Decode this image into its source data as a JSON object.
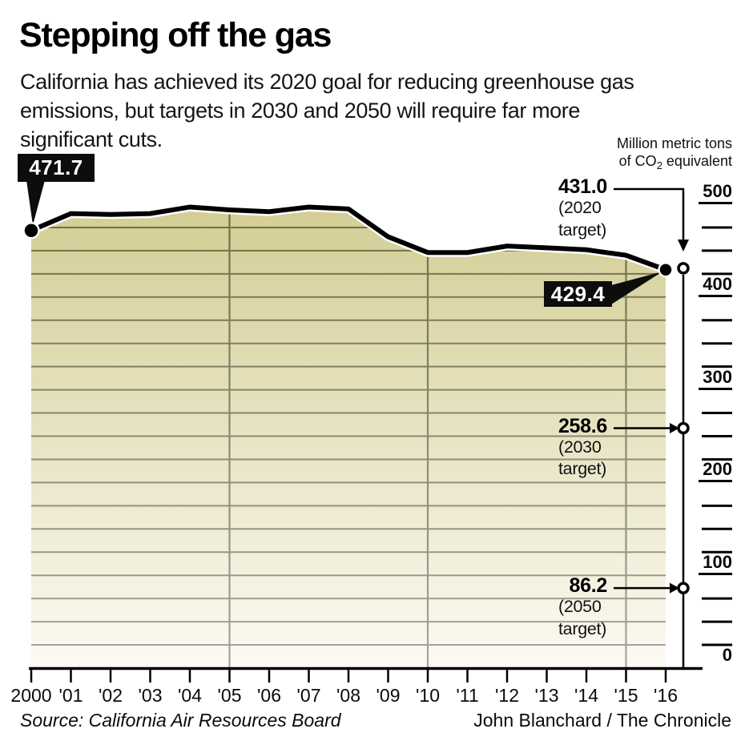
{
  "header": {
    "title": "Stepping off the gas",
    "subtitle": "California has achieved its 2020 goal for reducing greenhouse gas\nemissions, but targets in 2030 and 2050 will require far more\nsignificant cuts.",
    "unit_label": {
      "line1": "Million metric tons",
      "line2_pre": "of CO",
      "line2_sub": "2",
      "line2_post": " equivalent"
    }
  },
  "chart_data": {
    "type": "area",
    "x": [
      2000,
      2001,
      2002,
      2003,
      2004,
      2005,
      2006,
      2007,
      2008,
      2009,
      2010,
      2011,
      2012,
      2013,
      2014,
      2015,
      2016
    ],
    "x_tick_labels": [
      "2000",
      "'01",
      "'02",
      "'03",
      "'04",
      "'05",
      "'06",
      "'07",
      "'08",
      "'09",
      "'10",
      "'11",
      "'12",
      "'13",
      "'14",
      "'15",
      "'16"
    ],
    "values": [
      471.7,
      490,
      489,
      490,
      497,
      494,
      492,
      497,
      495,
      465,
      448,
      448,
      455,
      453,
      451,
      445,
      429.4
    ],
    "first_point_label": "471.7",
    "last_point_label": "429.4",
    "targets": [
      {
        "value": 431.0,
        "label": "431.0",
        "sublabel_line1": "(2020",
        "sublabel_line2": "target)",
        "arrow": "down"
      },
      {
        "value": 258.6,
        "label": "258.6",
        "sublabel_line1": "(2030",
        "sublabel_line2": "target)",
        "arrow": "right"
      },
      {
        "value": 86.2,
        "label": "86.2",
        "sublabel_line1": "(2050",
        "sublabel_line2": "target)",
        "arrow": "right"
      }
    ],
    "y_axis": {
      "min": 0,
      "max": 500,
      "major_labels": [
        "500",
        "400",
        "300",
        "200",
        "100",
        "0"
      ],
      "minor_tick_values": [
        475,
        450,
        425,
        375,
        350,
        325,
        275,
        250,
        225,
        175,
        150,
        125,
        75,
        50,
        25
      ],
      "gridline_step": 25,
      "vertical_gridline_years": [
        2005,
        2010,
        2015
      ]
    },
    "colors": {
      "line": "#000000",
      "area_top": "#d3cd93",
      "area_bottom": "#fcfaf3",
      "grid_top": "#6e6c44",
      "grid_bottom": "#a6a59c",
      "callout_bg": "#0d0d0d",
      "callout_text": "#ffffff"
    }
  },
  "footer": {
    "source": "Source: California Air Resources Board",
    "credit": "John Blanchard / The Chronicle"
  }
}
